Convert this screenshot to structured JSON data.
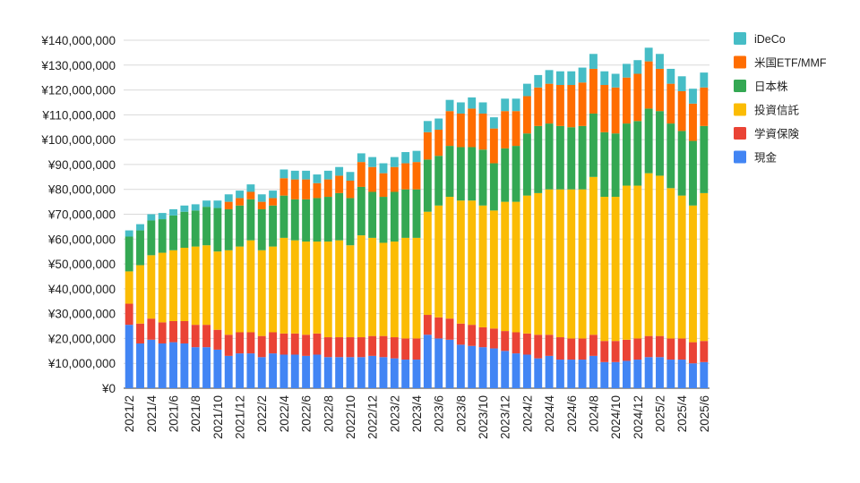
{
  "chart_data": {
    "type": "bar",
    "stacked": true,
    "grid": true,
    "legend_position": "right",
    "ylim": [
      0,
      140000000
    ],
    "y_ticks": [
      {
        "value": 0,
        "label": "¥0"
      },
      {
        "value": 10000000,
        "label": "¥10,000,000"
      },
      {
        "value": 20000000,
        "label": "¥20,000,000"
      },
      {
        "value": 30000000,
        "label": "¥30,000,000"
      },
      {
        "value": 40000000,
        "label": "¥40,000,000"
      },
      {
        "value": 50000000,
        "label": "¥50,000,000"
      },
      {
        "value": 60000000,
        "label": "¥60,000,000"
      },
      {
        "value": 70000000,
        "label": "¥70,000,000"
      },
      {
        "value": 80000000,
        "label": "¥80,000,000"
      },
      {
        "value": 90000000,
        "label": "¥90,000,000"
      },
      {
        "value": 100000000,
        "label": "¥100,000,000"
      },
      {
        "value": 110000000,
        "label": "¥110,000,000"
      },
      {
        "value": 120000000,
        "label": "¥120,000,000"
      },
      {
        "value": 130000000,
        "label": "¥130,000,000"
      },
      {
        "value": 140000000,
        "label": "¥140,000,000"
      }
    ],
    "categories": [
      "2021/2",
      "2021/3",
      "2021/4",
      "2021/5",
      "2021/6",
      "2021/7",
      "2021/8",
      "2021/9",
      "2021/10",
      "2021/11",
      "2021/12",
      "2022/1",
      "2022/2",
      "2022/3",
      "2022/4",
      "2022/5",
      "2022/6",
      "2022/7",
      "2022/8",
      "2022/9",
      "2022/10",
      "2022/11",
      "2022/12",
      "2023/1",
      "2023/2",
      "2023/3",
      "2023/4",
      "2023/5",
      "2023/6",
      "2023/7",
      "2023/8",
      "2023/9",
      "2023/10",
      "2023/11",
      "2023/12",
      "2024/1",
      "2024/2",
      "2024/3",
      "2024/4",
      "2024/5",
      "2024/6",
      "2024/7",
      "2024/8",
      "2024/9",
      "2024/10",
      "2024/11",
      "2024/12",
      "2025/1",
      "2025/2",
      "2025/3",
      "2025/4",
      "2025/5",
      "2025/6"
    ],
    "x_tick_labels": [
      "2021/2",
      "2021/4",
      "2021/6",
      "2021/8",
      "2021/10",
      "2021/12",
      "2022/2",
      "2022/4",
      "2022/6",
      "2022/8",
      "2022/10",
      "2022/12",
      "2023/2",
      "2023/4",
      "2023/6",
      "2023/8",
      "2023/10",
      "2023/12",
      "2024/2",
      "2024/4",
      "2024/6",
      "2024/8",
      "2024/10",
      "2024/12",
      "2025/2",
      "2025/4",
      "2025/6"
    ],
    "series": [
      {
        "name": "現金",
        "color": "#4285f4",
        "values": [
          25.5,
          18,
          19.5,
          18,
          18.5,
          18,
          16.5,
          16.5,
          15.5,
          13,
          14,
          14,
          12.5,
          14,
          13.5,
          13.5,
          13,
          13.5,
          12.5,
          12.5,
          12.5,
          12.5,
          13,
          12.5,
          12,
          11.5,
          11.5,
          21.5,
          20,
          19.5,
          17.5,
          17,
          16.5,
          16,
          15,
          14,
          13.5,
          12,
          13,
          11.5,
          11.5,
          11.5,
          13,
          10.5,
          10.5,
          11,
          11.5,
          12.5,
          12.5,
          11.5,
          11.5,
          10,
          10.5
        ]
      },
      {
        "name": "学資保険",
        "color": "#ea4335",
        "values": [
          8.5,
          8,
          8.5,
          8.5,
          8.5,
          9,
          9,
          9,
          8,
          8.5,
          8.5,
          8.5,
          8.5,
          8.5,
          8.5,
          8.5,
          8.5,
          8.5,
          8,
          8,
          8,
          8,
          8,
          8.5,
          8.5,
          8.5,
          8.5,
          8,
          8.5,
          8.5,
          8.5,
          8.5,
          8,
          8,
          8,
          8.5,
          8.5,
          9.5,
          8.5,
          9,
          8.5,
          8.5,
          8.5,
          8.5,
          8.5,
          8.5,
          8.5,
          8.5,
          8.5,
          8.5,
          8.5,
          8.5,
          8.5
        ]
      },
      {
        "name": "投資信託",
        "color": "#fbbc04",
        "values": [
          13,
          23.5,
          25.5,
          28,
          28.5,
          29.5,
          31.5,
          32,
          31.5,
          34,
          34.5,
          37,
          34.5,
          34.5,
          38.5,
          37.5,
          37.5,
          37,
          38.5,
          39,
          37,
          41,
          39.5,
          37.5,
          38.5,
          40.5,
          40.5,
          41.5,
          45,
          49,
          49.5,
          50,
          49,
          47.5,
          52,
          52.5,
          55.5,
          57,
          58.5,
          59.5,
          60,
          60,
          63.5,
          58,
          58,
          62,
          61.5,
          65.5,
          64.5,
          60.5,
          57.5,
          55,
          59.5
        ]
      },
      {
        "name": "日本株",
        "color": "#34a853",
        "values": [
          14,
          14,
          14,
          13.5,
          14,
          14.5,
          14.5,
          15.5,
          17.5,
          16.5,
          16.5,
          16.5,
          16.5,
          16.5,
          17,
          16.5,
          17,
          17.5,
          18,
          19,
          19,
          19.5,
          18.5,
          18.5,
          20,
          19.5,
          19.5,
          21,
          20,
          20.5,
          21.5,
          21.5,
          22.5,
          19,
          21.5,
          22.5,
          25,
          27,
          26.5,
          25.5,
          25,
          25.5,
          25.5,
          26,
          25.5,
          25,
          26,
          26,
          26,
          26,
          26,
          26,
          27
        ]
      },
      {
        "name": "米国ETF/MMF",
        "color": "#ff6d01",
        "values": [
          0,
          0,
          0,
          0,
          0,
          0,
          0,
          0,
          0,
          3,
          3,
          3,
          3,
          3,
          7,
          8,
          8,
          6,
          7,
          7,
          7,
          10,
          10,
          9.5,
          10,
          10.5,
          11,
          11,
          10.5,
          14,
          13.5,
          15.5,
          14.5,
          14,
          15,
          14,
          15,
          15.5,
          16,
          16.5,
          17,
          17.5,
          18,
          19,
          18.5,
          18.5,
          19,
          19,
          17,
          16,
          16,
          15,
          15.5
        ]
      },
      {
        "name": "iDeCo",
        "color": "#46bdc6",
        "values": [
          2.5,
          2.5,
          2.5,
          2.5,
          2.5,
          2.5,
          2.5,
          2.5,
          3,
          3,
          3,
          3,
          3,
          3,
          3.5,
          3.5,
          3.5,
          3.5,
          3.5,
          3.5,
          3.5,
          3.5,
          4,
          4,
          4,
          4.5,
          4.5,
          4.5,
          4.5,
          4.5,
          4.5,
          4.5,
          4.5,
          4.5,
          5,
          5,
          5,
          5,
          5.5,
          5.5,
          5.5,
          6,
          6,
          5.5,
          5.5,
          5.5,
          5.5,
          5.5,
          6,
          6,
          6,
          6,
          6
        ]
      }
    ]
  },
  "units": {
    "multiplier": 1000000
  }
}
